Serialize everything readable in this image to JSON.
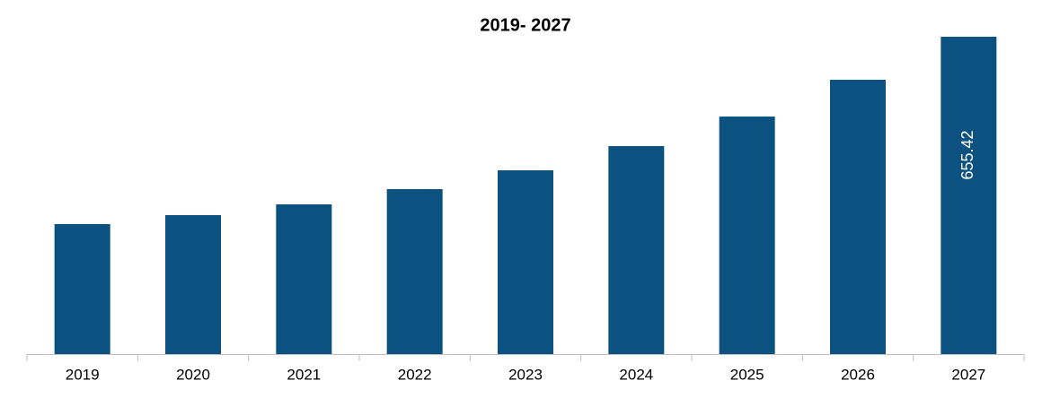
{
  "chart_data": {
    "type": "bar",
    "title": "2019- 2027",
    "categories": [
      "2019",
      "2020",
      "2021",
      "2022",
      "2023",
      "2024",
      "2025",
      "2026",
      "2027"
    ],
    "values": [
      268.5,
      287.0,
      309.2,
      340.7,
      379.6,
      429.6,
      490.6,
      566.6,
      655.42
    ],
    "color": "#0b5280"
  }
}
